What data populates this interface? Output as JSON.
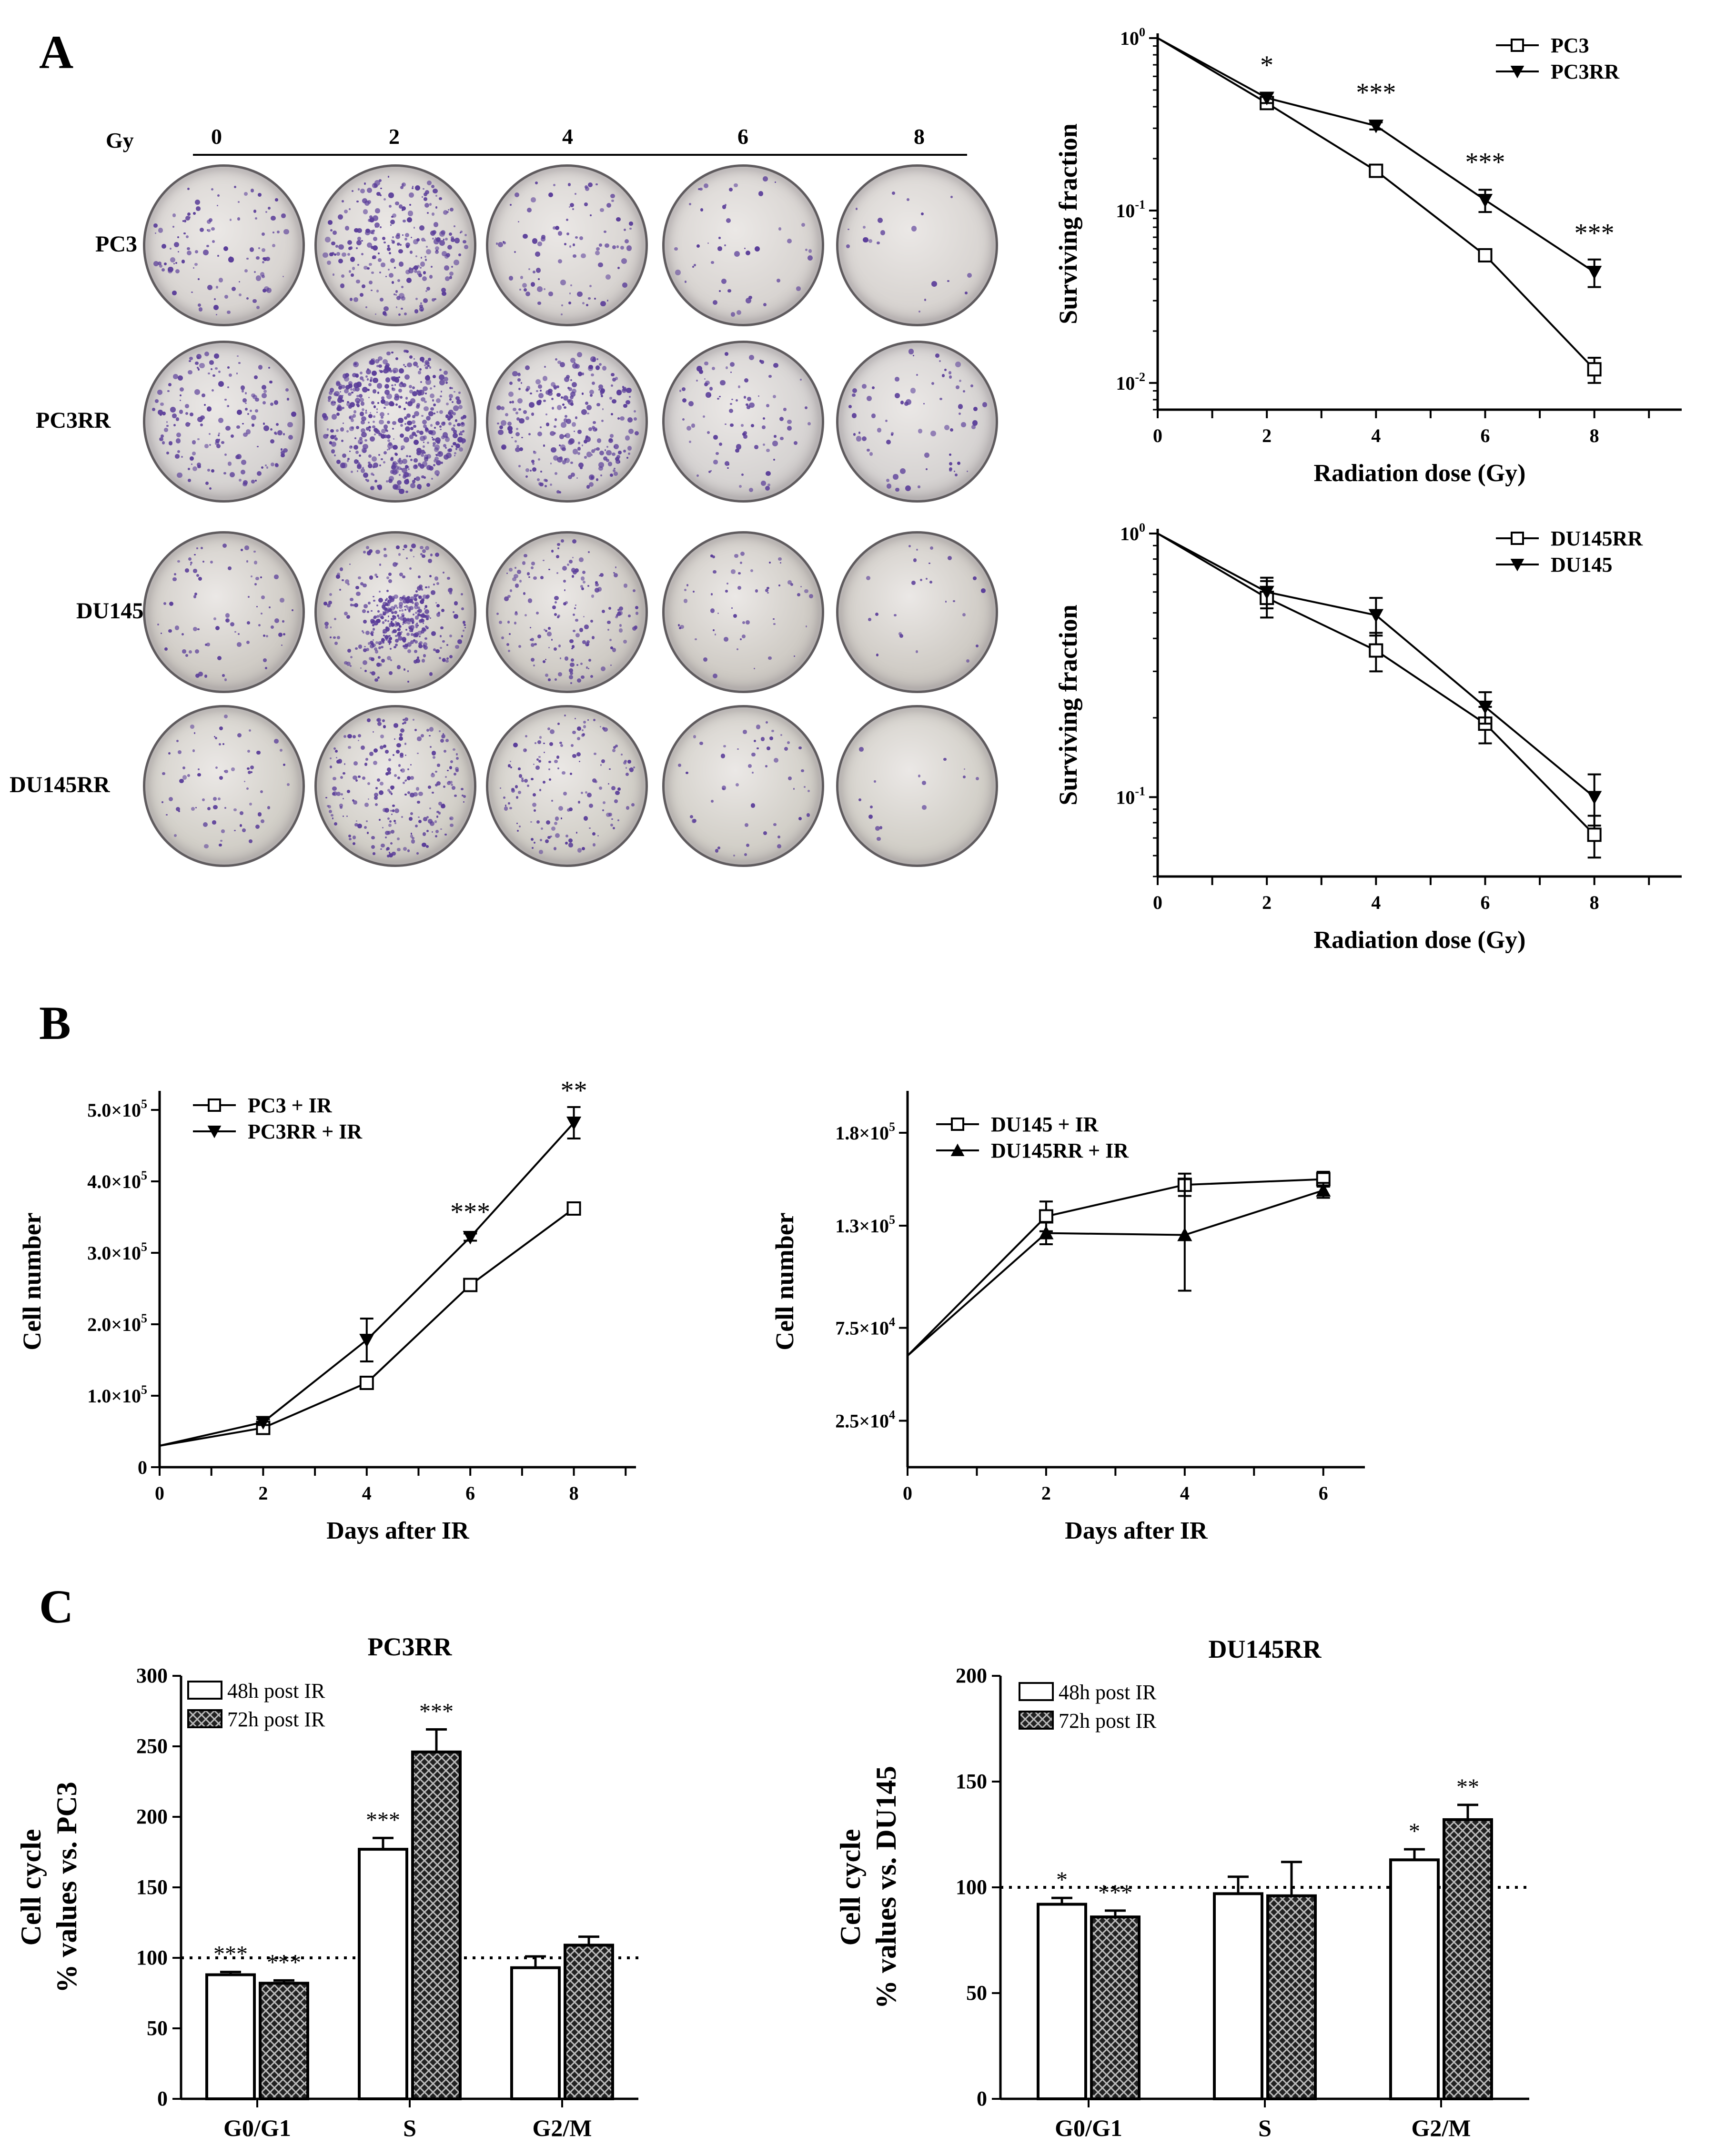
{
  "panels": {
    "a": "A",
    "b": "B",
    "c": "C"
  },
  "plates": {
    "dose_unit": "Gy",
    "doses": [
      "0",
      "2",
      "4",
      "6",
      "8"
    ],
    "rows": [
      {
        "label": "PC3",
        "density": [
          110,
          260,
          95,
          45,
          20
        ],
        "tint": "#d8d4d1"
      },
      {
        "label": "PC3RR",
        "density": [
          170,
          520,
          260,
          90,
          70
        ],
        "tint": "#d6d3d2"
      },
      {
        "label": "DU145",
        "density": [
          80,
          420,
          160,
          55,
          25
        ],
        "tint": "#cfcbc5"
      },
      {
        "label": "DU145RR",
        "density": [
          70,
          240,
          150,
          50,
          15
        ],
        "tint": "#d2cfc8"
      }
    ],
    "colony_color": "#5a3d99"
  },
  "chart_data": [
    {
      "id": "a-top",
      "type": "line",
      "yscale": "log",
      "xlabel": "Radiation dose (Gy)",
      "ylabel": "Surviving  fraction",
      "xlim": [
        0,
        9.6
      ],
      "xticks": [
        0,
        2,
        4,
        6,
        8
      ],
      "xtick_labels": [
        "0",
        "2",
        "4",
        "6",
        "8"
      ],
      "ylim": [
        0.007,
        1
      ],
      "yticks": [
        1,
        0.1,
        0.01
      ],
      "ytick_labels": [
        {
          "base": "10",
          "exp": "0"
        },
        {
          "base": "10",
          "exp": "-1"
        },
        {
          "base": "10",
          "exp": "-2"
        }
      ],
      "series": [
        {
          "name": "PC3",
          "marker": "square",
          "x": [
            0,
            2,
            4,
            6,
            8
          ],
          "y": [
            1,
            0.42,
            0.17,
            0.055,
            0.012
          ],
          "err": [
            0,
            0.03,
            0.01,
            0.004,
            0.002
          ]
        },
        {
          "name": "PC3RR",
          "marker": "triangle-down",
          "x": [
            0,
            2,
            4,
            6,
            8
          ],
          "y": [
            1,
            0.45,
            0.31,
            0.115,
            0.044
          ],
          "err": [
            0,
            0.03,
            0.015,
            0.017,
            0.008
          ]
        }
      ],
      "annotations": [
        {
          "x": 2,
          "y": 0.62,
          "text": "*"
        },
        {
          "x": 4,
          "y": 0.43,
          "text": "***"
        },
        {
          "x": 6,
          "y": 0.17,
          "text": "***"
        },
        {
          "x": 8,
          "y": 0.066,
          "text": "***"
        }
      ]
    },
    {
      "id": "a-bottom",
      "type": "line",
      "yscale": "log",
      "xlabel": "Radiation dose (Gy)",
      "ylabel": "Surviving  fraction",
      "xlim": [
        0,
        9.6
      ],
      "xticks": [
        0,
        2,
        4,
        6,
        8
      ],
      "xtick_labels": [
        "0",
        "2",
        "4",
        "6",
        "8"
      ],
      "ylim": [
        0.05,
        1
      ],
      "yticks": [
        1,
        0.1
      ],
      "ytick_labels": [
        {
          "base": "10",
          "exp": "0"
        },
        {
          "base": "10",
          "exp": "-1"
        }
      ],
      "series": [
        {
          "name": "DU145RR",
          "marker": "square",
          "x": [
            0,
            2,
            4,
            6,
            8
          ],
          "y": [
            1,
            0.57,
            0.36,
            0.19,
            0.072
          ],
          "err": [
            0,
            0.09,
            0.06,
            0.03,
            0.013
          ]
        },
        {
          "name": "DU145",
          "marker": "triangle-down",
          "x": [
            0,
            2,
            4,
            6,
            8
          ],
          "y": [
            1,
            0.6,
            0.49,
            0.22,
            0.1
          ],
          "err": [
            0,
            0.08,
            0.08,
            0.03,
            0.022
          ]
        }
      ],
      "annotations": []
    },
    {
      "id": "b-left",
      "type": "line",
      "yscale": "linear",
      "xlabel": "Days after IR",
      "ylabel": "Cell number",
      "xlim": [
        0,
        9.2
      ],
      "xticks": [
        0,
        2,
        4,
        6,
        8
      ],
      "xtick_labels": [
        "0",
        "2",
        "4",
        "6",
        "8"
      ],
      "ylim": [
        0,
        520000
      ],
      "yticks": [
        0,
        100000,
        200000,
        300000,
        400000,
        500000
      ],
      "ytick_labels": [
        {
          "base": "0",
          "exp": ""
        },
        {
          "base": "1.0×10",
          "exp": "5"
        },
        {
          "base": "2.0×10",
          "exp": "5"
        },
        {
          "base": "3.0×10",
          "exp": "5"
        },
        {
          "base": "4.0×10",
          "exp": "5"
        },
        {
          "base": "5.0×10",
          "exp": "5"
        }
      ],
      "series": [
        {
          "name": "PC3 + IR",
          "marker": "square",
          "x": [
            0,
            2,
            4,
            6,
            8
          ],
          "y": [
            30000,
            55000,
            118000,
            255000,
            362000
          ],
          "err": [
            0,
            4000,
            5000,
            5000,
            4000
          ]
        },
        {
          "name": "PC3RR + IR",
          "marker": "triangle-down",
          "x": [
            0,
            2,
            4,
            6,
            8
          ],
          "y": [
            30000,
            63000,
            178000,
            322000,
            482000
          ],
          "err": [
            0,
            4000,
            30000,
            5000,
            22000
          ]
        }
      ],
      "annotations": [
        {
          "x": 6,
          "y": 345000,
          "text": "***"
        },
        {
          "x": 8,
          "y": 515000,
          "text": "**"
        }
      ]
    },
    {
      "id": "b-right",
      "type": "line",
      "yscale": "linear",
      "xlabel": "Days after IR",
      "ylabel": "Cell number",
      "xlim": [
        0,
        6.6
      ],
      "xticks": [
        0,
        2,
        4,
        6
      ],
      "xtick_labels": [
        "0",
        "2",
        "4",
        "6"
      ],
      "ylim": [
        0,
        200000
      ],
      "yticks": [
        25000,
        75000,
        130000,
        180000
      ],
      "ytick_labels": [
        {
          "base": "2.5×10",
          "exp": "4"
        },
        {
          "base": "7.5×10",
          "exp": "4"
        },
        {
          "base": "1.3×10",
          "exp": "5"
        },
        {
          "base": "1.8×10",
          "exp": "5"
        }
      ],
      "series": [
        {
          "name": "DU145 + IR",
          "marker": "square",
          "x": [
            0,
            2,
            4,
            6
          ],
          "y": [
            60000,
            135000,
            152000,
            155000
          ],
          "err": [
            0,
            8000,
            6000,
            4000
          ]
        },
        {
          "name": "DU145RR + IR",
          "marker": "triangle-up",
          "x": [
            0,
            2,
            4,
            6
          ],
          "y": [
            60000,
            126000,
            125000,
            149000
          ],
          "err": [
            0,
            6000,
            30000,
            4000
          ]
        }
      ],
      "annotations": []
    },
    {
      "id": "c-left",
      "type": "bar",
      "title": "PC3RR",
      "ylabel": "Cell cycle|% values vs. PC3",
      "categories": [
        "G0/G1",
        "S",
        "G2/M"
      ],
      "ylim": [
        0,
        300
      ],
      "yticks": [
        0,
        50,
        100,
        150,
        200,
        250,
        300
      ],
      "ytick_labels": [
        "0",
        "50",
        "100",
        "150",
        "200",
        "250",
        "300"
      ],
      "reference_line": 100,
      "series": [
        {
          "name": "48h post IR",
          "fill": "white",
          "values": [
            88,
            177,
            93
          ],
          "err": [
            2,
            8,
            8
          ]
        },
        {
          "name": "72h post IR",
          "fill": "pattern",
          "values": [
            82,
            246,
            109
          ],
          "err": [
            2,
            16,
            6
          ]
        }
      ],
      "annotations": [
        {
          "cat": 0,
          "s": 0,
          "text": "***"
        },
        {
          "cat": 0,
          "s": 1,
          "text": "***"
        },
        {
          "cat": 1,
          "s": 0,
          "text": "***"
        },
        {
          "cat": 1,
          "s": 1,
          "text": "***"
        }
      ]
    },
    {
      "id": "c-right",
      "type": "bar",
      "title": "DU145RR",
      "ylabel": "Cell cycle|% values vs. DU145",
      "categories": [
        "G0/G1",
        "S",
        "G2/M"
      ],
      "ylim": [
        0,
        200
      ],
      "yticks": [
        0,
        50,
        100,
        150,
        200
      ],
      "ytick_labels": [
        "0",
        "50",
        "100",
        "150",
        "200"
      ],
      "reference_line": 100,
      "series": [
        {
          "name": "48h post IR",
          "fill": "white",
          "values": [
            92,
            97,
            113
          ],
          "err": [
            3,
            8,
            5
          ]
        },
        {
          "name": "72h post IR",
          "fill": "pattern",
          "values": [
            86,
            96,
            132
          ],
          "err": [
            3,
            16,
            7
          ]
        }
      ],
      "annotations": [
        {
          "cat": 0,
          "s": 0,
          "text": "*"
        },
        {
          "cat": 0,
          "s": 1,
          "text": "***"
        },
        {
          "cat": 2,
          "s": 0,
          "text": "*"
        },
        {
          "cat": 2,
          "s": 1,
          "text": "**"
        }
      ]
    }
  ]
}
